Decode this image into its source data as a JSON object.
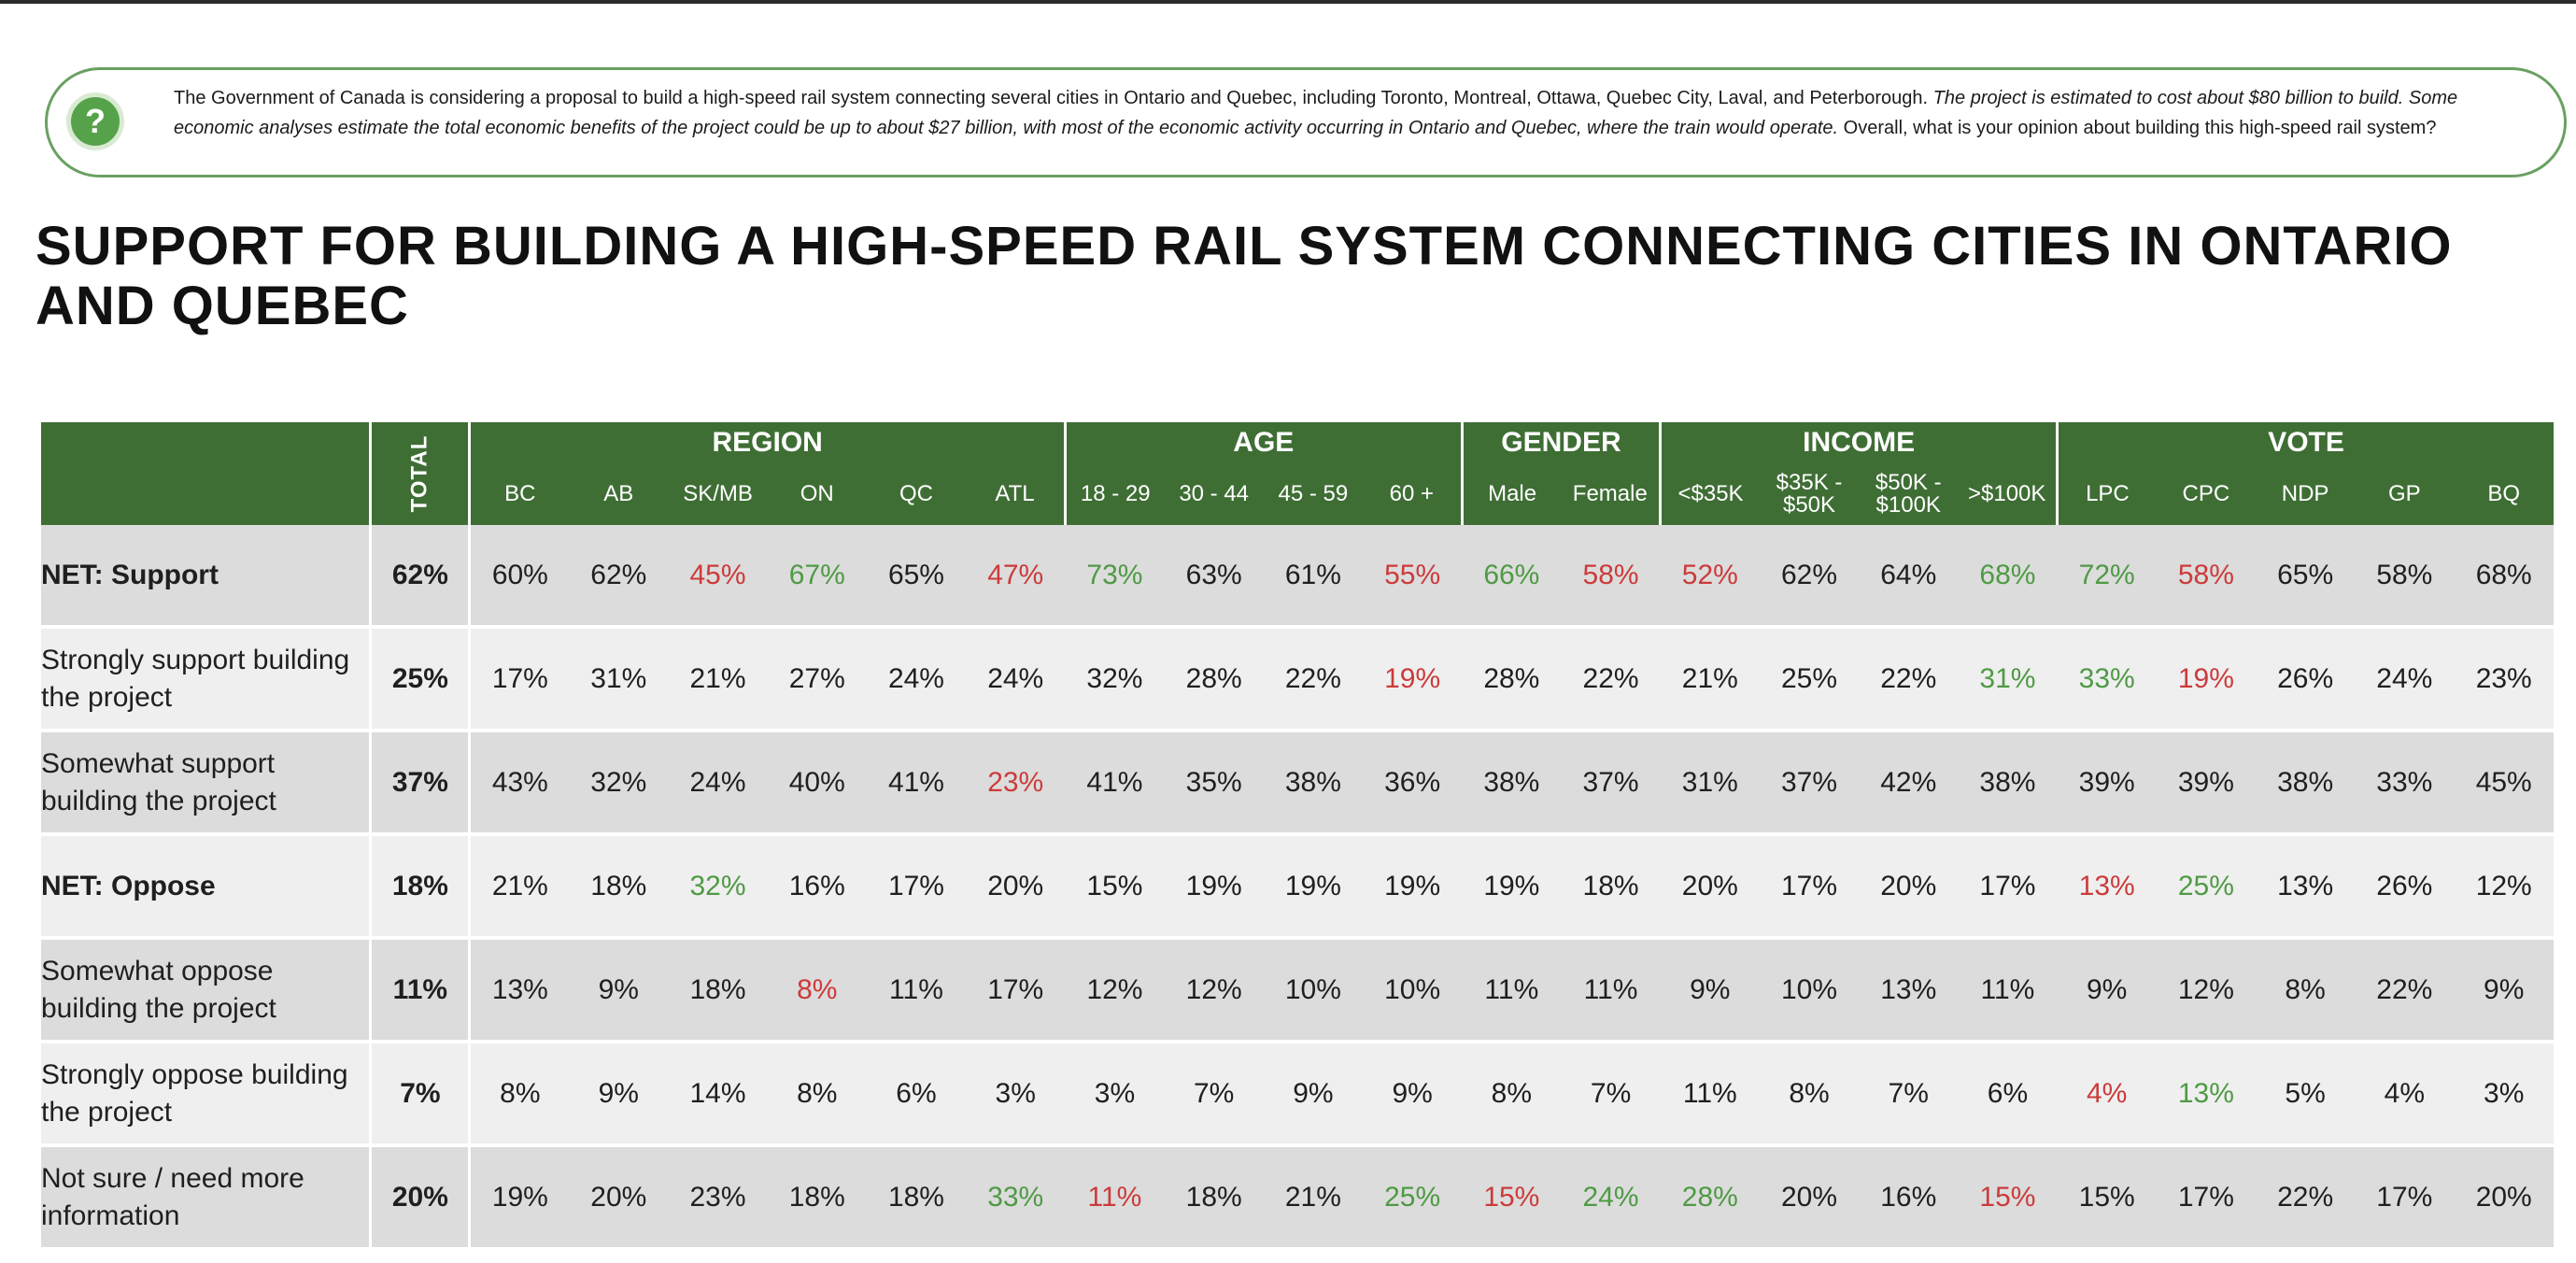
{
  "question": {
    "text_plain": "The Government of Canada is considering a proposal to build a high-speed rail system connecting several cities in Ontario and Quebec, including Toronto, Montreal, Ottawa, Quebec City, Laval, and Peterborough.",
    "text_italic": "The project is estimated to cost about $80 billion to build. Some economic analyses estimate the total economic benefits of the project could be up to about $27 billion, with most of the economic activity occurring in Ontario and Quebec, where the train would operate.",
    "text_end": "Overall, what is your opinion about building this high-speed rail system?"
  },
  "title": "SUPPORT FOR BUILDING A HIGH-SPEED RAIL SYSTEM CONNECTING CITIES IN ONTARIO AND QUEBEC",
  "table": {
    "total_header": "TOTAL",
    "groups": [
      "REGION",
      "AGE",
      "GENDER",
      "INCOME",
      "VOTE"
    ],
    "columns": [
      "BC",
      "AB",
      "SK/MB",
      "ON",
      "QC",
      "ATL",
      "18 - 29",
      "30 - 44",
      "45 - 59",
      "60 +",
      "Male",
      "Female",
      "<$35K",
      "$35K - $50K",
      "$50K - $100K",
      ">$100K",
      "LPC",
      "CPC",
      "NDP",
      "GP",
      "BQ"
    ],
    "rows": [
      {
        "label": "NET: Support",
        "net": true,
        "total": "62%",
        "values": [
          "60%",
          "62%",
          "45%",
          "67%",
          "65%",
          "47%",
          "73%",
          "63%",
          "61%",
          "55%",
          "66%",
          "58%",
          "52%",
          "62%",
          "64%",
          "68%",
          "72%",
          "58%",
          "65%",
          "58%",
          "68%"
        ],
        "marks": [
          "",
          "",
          "down",
          "up",
          "",
          "down",
          "up",
          "",
          "",
          "down",
          "up",
          "down",
          "down",
          "",
          "",
          "up",
          "up",
          "down",
          "",
          "",
          ""
        ]
      },
      {
        "label": "Strongly support building the project",
        "net": false,
        "total": "25%",
        "values": [
          "17%",
          "31%",
          "21%",
          "27%",
          "24%",
          "24%",
          "32%",
          "28%",
          "22%",
          "19%",
          "28%",
          "22%",
          "21%",
          "25%",
          "22%",
          "31%",
          "33%",
          "19%",
          "26%",
          "24%",
          "23%"
        ],
        "marks": [
          "",
          "",
          "",
          "",
          "",
          "",
          "",
          "",
          "",
          "down",
          "",
          "",
          "",
          "",
          "",
          "up",
          "up",
          "down",
          "",
          "",
          ""
        ]
      },
      {
        "label": "Somewhat support building the project",
        "net": false,
        "total": "37%",
        "values": [
          "43%",
          "32%",
          "24%",
          "40%",
          "41%",
          "23%",
          "41%",
          "35%",
          "38%",
          "36%",
          "38%",
          "37%",
          "31%",
          "37%",
          "42%",
          "38%",
          "39%",
          "39%",
          "38%",
          "33%",
          "45%"
        ],
        "marks": [
          "",
          "",
          "",
          "",
          "",
          "down",
          "",
          "",
          "",
          "",
          "",
          "",
          "",
          "",
          "",
          "",
          "",
          "",
          "",
          "",
          ""
        ]
      },
      {
        "label": "NET: Oppose",
        "net": true,
        "total": "18%",
        "values": [
          "21%",
          "18%",
          "32%",
          "16%",
          "17%",
          "20%",
          "15%",
          "19%",
          "19%",
          "19%",
          "19%",
          "18%",
          "20%",
          "17%",
          "20%",
          "17%",
          "13%",
          "25%",
          "13%",
          "26%",
          "12%"
        ],
        "marks": [
          "",
          "",
          "up",
          "",
          "",
          "",
          "",
          "",
          "",
          "",
          "",
          "",
          "",
          "",
          "",
          "",
          "down",
          "up",
          "",
          "",
          ""
        ]
      },
      {
        "label": "Somewhat oppose building the project",
        "net": false,
        "total": "11%",
        "values": [
          "13%",
          "9%",
          "18%",
          "8%",
          "11%",
          "17%",
          "12%",
          "12%",
          "10%",
          "10%",
          "11%",
          "11%",
          "9%",
          "10%",
          "13%",
          "11%",
          "9%",
          "12%",
          "8%",
          "22%",
          "9%"
        ],
        "marks": [
          "",
          "",
          "",
          "down",
          "",
          "",
          "",
          "",
          "",
          "",
          "",
          "",
          "",
          "",
          "",
          "",
          "",
          "",
          "",
          "",
          ""
        ]
      },
      {
        "label": "Strongly oppose building the project",
        "net": false,
        "total": "7%",
        "values": [
          "8%",
          "9%",
          "14%",
          "8%",
          "6%",
          "3%",
          "3%",
          "7%",
          "9%",
          "9%",
          "8%",
          "7%",
          "11%",
          "8%",
          "7%",
          "6%",
          "4%",
          "13%",
          "5%",
          "4%",
          "3%"
        ],
        "marks": [
          "",
          "",
          "",
          "",
          "",
          "",
          "",
          "",
          "",
          "",
          "",
          "",
          "",
          "",
          "",
          "",
          "down",
          "up",
          "",
          "",
          ""
        ]
      },
      {
        "label": "Not sure / need more information",
        "net": false,
        "total": "20%",
        "values": [
          "19%",
          "20%",
          "23%",
          "18%",
          "18%",
          "33%",
          "11%",
          "18%",
          "21%",
          "25%",
          "15%",
          "24%",
          "28%",
          "20%",
          "16%",
          "15%",
          "15%",
          "17%",
          "22%",
          "17%",
          "20%"
        ],
        "marks": [
          "",
          "",
          "",
          "",
          "",
          "up",
          "down",
          "",
          "",
          "up",
          "down",
          "up",
          "up",
          "",
          "",
          "down",
          "",
          "",
          "",
          "",
          ""
        ]
      }
    ]
  },
  "colors": {
    "header_green": "#3f6e35",
    "positive": "#4f9a45",
    "negative": "#cc3b3b",
    "row_dark": "#dcdcdc",
    "row_light": "#efefef"
  },
  "icons": {
    "question": "question-circle-icon"
  }
}
